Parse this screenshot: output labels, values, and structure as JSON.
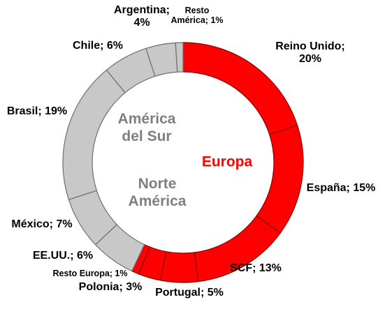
{
  "chart_data": {
    "type": "pie",
    "variant": "donut",
    "start_angle_deg": 0,
    "direction": "clockwise",
    "colors": {
      "Europa": "#ff0000",
      "Europa_stroke": "#8b0000",
      "America": "#c8c8c8",
      "America_stroke": "#6e6e6e",
      "Europa_label": "#ff0000",
      "America_label": "#7f7f7f"
    },
    "slices": [
      {
        "label": "Reino Unido;\n20%",
        "value": 20,
        "group": "Europa"
      },
      {
        "label": "España; 15%",
        "value": 15,
        "group": "Europa"
      },
      {
        "label": "SCF; 13%",
        "value": 13,
        "group": "Europa"
      },
      {
        "label": "Portugal; 5%",
        "value": 5,
        "group": "Europa"
      },
      {
        "label": "Polonia; 3%",
        "value": 3,
        "group": "Europa"
      },
      {
        "label": "Resto Europa; 1%",
        "value": 1,
        "group": "Europa"
      },
      {
        "label": "EE.UU.; 6%",
        "value": 6,
        "group": "America"
      },
      {
        "label": "México; 7%",
        "value": 7,
        "group": "America"
      },
      {
        "label": "Brasil; 19%",
        "value": 19,
        "group": "America"
      },
      {
        "label": "Chile; 6%",
        "value": 6,
        "group": "America"
      },
      {
        "label": "Argentina;\n4%",
        "value": 4,
        "group": "America"
      },
      {
        "label": "Resto\nAmérica; 1%",
        "value": 1,
        "group": "America"
      }
    ],
    "center_labels": {
      "america_del_sur": "América\ndel Sur",
      "norte_america": "Norte\nAmérica",
      "europa": "Europa"
    }
  }
}
